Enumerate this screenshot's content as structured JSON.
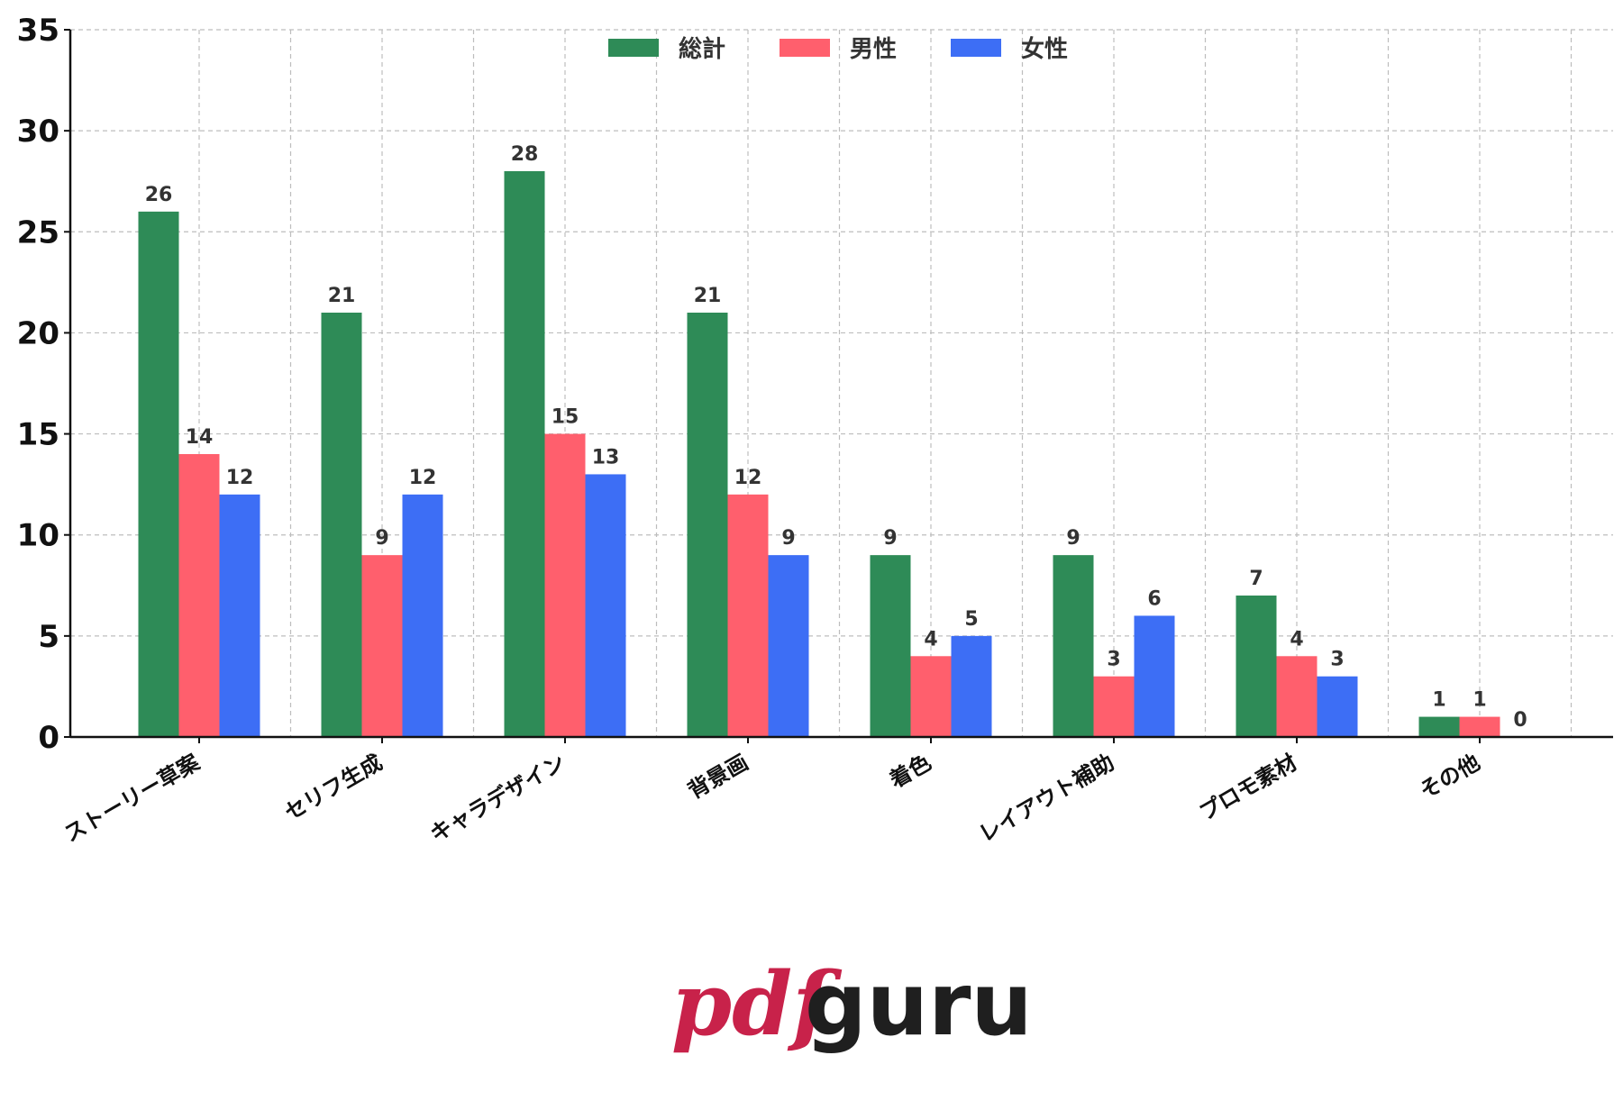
{
  "chart_data": {
    "type": "bar",
    "categories": [
      "ストーリー草案",
      "セリフ生成",
      "キャラデザイン",
      "背景画",
      "着色",
      "レイアウト補助",
      "プロモ素材",
      "その他"
    ],
    "series": [
      {
        "name": "総計",
        "color": "#2e8b57",
        "values": [
          26,
          21,
          28,
          21,
          9,
          9,
          7,
          1
        ]
      },
      {
        "name": "男性",
        "color": "#ff5f6d",
        "values": [
          14,
          9,
          15,
          12,
          4,
          3,
          4,
          1
        ]
      },
      {
        "name": "女性",
        "color": "#3d6ef5",
        "values": [
          12,
          12,
          13,
          9,
          5,
          6,
          3,
          0
        ]
      }
    ],
    "y_ticks": [
      "0",
      "5",
      "10",
      "15",
      "20",
      "25",
      "30",
      "35"
    ],
    "ylim": [
      0,
      35
    ],
    "title": "",
    "xlabel": "",
    "ylabel": "",
    "grid": true,
    "legend_position": "top-center",
    "data_labels": true
  },
  "logo": {
    "part1": "pdf",
    "part2": "guru",
    "color_part1": "#c8224a",
    "color_part2": "#1f1f1f"
  }
}
